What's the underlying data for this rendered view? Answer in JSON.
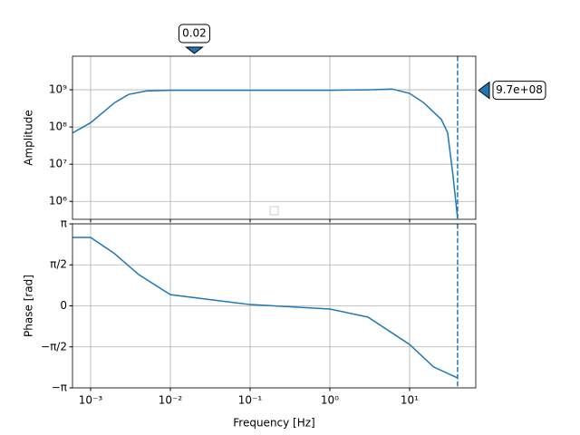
{
  "chart_data": [
    {
      "type": "line",
      "y_label": "Amplitude",
      "ylog": true,
      "xlog": true,
      "grid": true,
      "xlim": [
        0.000593,
        67.6
      ],
      "ylim": [
        330000,
        8000000000
      ],
      "yticks": [
        {
          "value": 1000000,
          "label": "10⁶"
        },
        {
          "value": 10000000,
          "label": "10⁷"
        },
        {
          "value": 100000000,
          "label": "10⁸"
        },
        {
          "value": 1000000000,
          "label": "10⁹"
        }
      ],
      "series": [
        {
          "color": "#1f77b4",
          "x": [
            0.0006,
            0.001,
            0.002,
            0.003,
            0.005,
            0.01,
            0.1,
            1,
            3,
            6,
            10,
            15,
            25,
            30,
            35,
            40
          ],
          "values": [
            70000000,
            130000000,
            450000000,
            750000000,
            930000000,
            970000000,
            970000000,
            970000000,
            1000000000,
            1050000000,
            800000000,
            450000000,
            160000000,
            70000000,
            5000000,
            350000
          ]
        }
      ],
      "vline": 40,
      "cursor": {
        "x": 0.02,
        "x_label": "0.02",
        "y": 970000000,
        "y_label": "9.7e+08"
      }
    },
    {
      "type": "line",
      "y_label": "Phase [rad]",
      "x_label": "Frequency [Hz]",
      "xlog": true,
      "grid": true,
      "xlim": [
        0.000593,
        67.6
      ],
      "ylim": [
        -3.14159,
        3.14159
      ],
      "xticks": [
        {
          "value": 0.001,
          "label": "10⁻³"
        },
        {
          "value": 0.01,
          "label": "10⁻²"
        },
        {
          "value": 0.1,
          "label": "10⁻¹"
        },
        {
          "value": 1,
          "label": "10⁰"
        },
        {
          "value": 10,
          "label": "10¹"
        }
      ],
      "yticks": [
        {
          "value": -3.14159,
          "label": "−π"
        },
        {
          "value": -1.5708,
          "label": "−π/2"
        },
        0,
        {
          "value": 1.5708,
          "label": "π/2"
        },
        {
          "value": 3.14159,
          "label": "π"
        }
      ],
      "series": [
        {
          "color": "#1f77b4",
          "x": [
            0.0006,
            0.001,
            0.002,
            0.004,
            0.01,
            0.1,
            1,
            3,
            10,
            20,
            40
          ],
          "values": [
            2.62,
            2.62,
            2.0,
            1.2,
            0.43,
            0.05,
            -0.12,
            -0.43,
            -1.48,
            -2.34,
            -2.76
          ]
        }
      ],
      "vline": 40
    }
  ]
}
